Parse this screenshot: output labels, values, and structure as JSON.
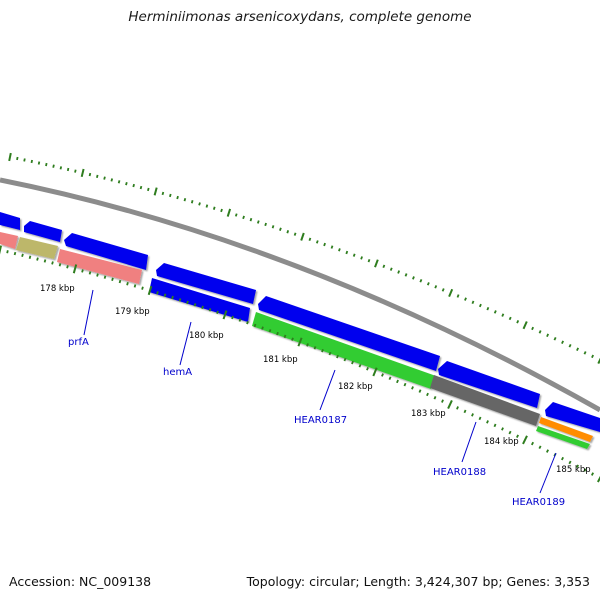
{
  "header": {
    "title": "Herminiimonas arsenicoxydans, complete genome"
  },
  "footer": {
    "accession": "Accession: NC_009138",
    "summary": "Topology: circular; Length: 3,424,307 bp; Genes: 3,353"
  },
  "map": {
    "backbone_color": "#8c8c8c",
    "tick_color": "#2e7d1e",
    "kbp_labels": [
      "178 kbp",
      "179 kbp",
      "180 kbp",
      "181 kbp",
      "182 kbp",
      "183 kbp",
      "184 kbp",
      "185 kbp"
    ],
    "gene_labels": [
      "prfA",
      "hemA",
      "HEAR0187",
      "HEAR0188",
      "HEAR0189"
    ],
    "colors": {
      "cds_blue": "#0000ee",
      "trna_pink": "#f08080",
      "olive": "#bdb76b",
      "green": "#33cc33",
      "gray": "#666666",
      "orange": "#ff8c00"
    }
  }
}
